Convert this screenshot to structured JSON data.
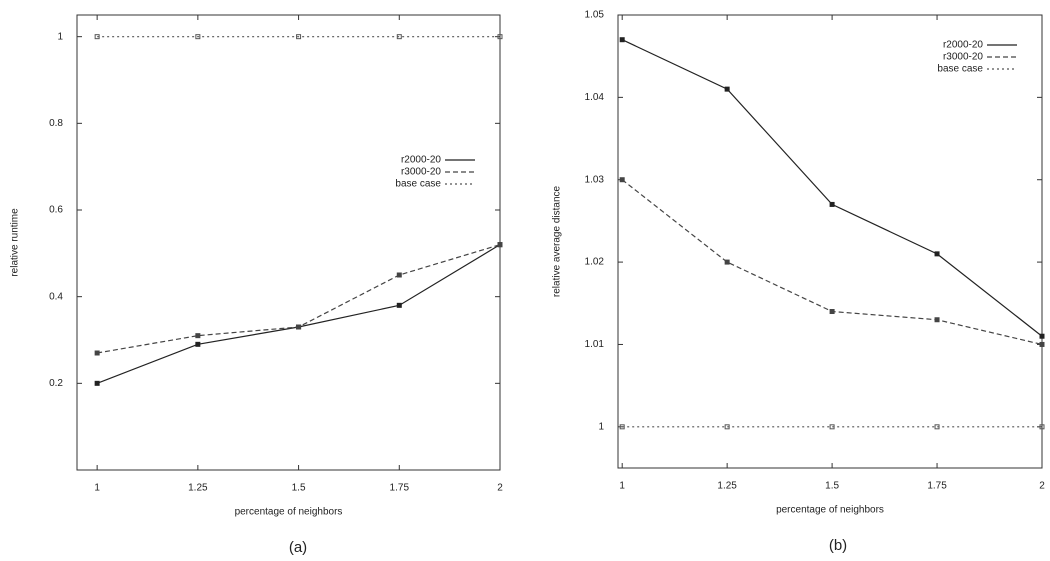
{
  "chart_data": [
    {
      "type": "line",
      "caption": "(a)",
      "x_label": "percentage of neighbors",
      "y_label": "relative runtime",
      "x": [
        1,
        1.25,
        1.5,
        1.75,
        2
      ],
      "xlim": [
        0.95,
        2
      ],
      "xticks": [
        1,
        1.25,
        1.5,
        1.75,
        2
      ],
      "ylim": [
        0,
        1.05
      ],
      "yticks": [
        0.2,
        0.4,
        0.6,
        0.8,
        1
      ],
      "legend": "upper right",
      "series": [
        {
          "name": "r2000-20",
          "color": "#222222",
          "linestyle": "solid",
          "values": [
            0.2,
            0.29,
            0.33,
            0.38,
            0.52
          ]
        },
        {
          "name": "r3000-20",
          "color": "#444444",
          "linestyle": "dashed",
          "values": [
            0.27,
            0.31,
            0.33,
            0.45,
            0.52
          ]
        },
        {
          "name": "base case",
          "color": "#555555",
          "linestyle": "dotted",
          "values": [
            1,
            1,
            1,
            1,
            1
          ]
        }
      ]
    },
    {
      "type": "line",
      "caption": "(b)",
      "x_label": "percentage of neighbors",
      "y_label": "relative average distance",
      "x": [
        1,
        1.25,
        1.5,
        1.75,
        2
      ],
      "xlim": [
        0.99,
        2
      ],
      "xticks": [
        1,
        1.25,
        1.5,
        1.75,
        2
      ],
      "ylim": [
        0.995,
        1.05
      ],
      "yticks": [
        1,
        1.01,
        1.02,
        1.03,
        1.04,
        1.05
      ],
      "legend": "upper right",
      "series": [
        {
          "name": "r2000-20",
          "color": "#222222",
          "linestyle": "solid",
          "values": [
            1.047,
            1.041,
            1.027,
            1.021,
            1.011
          ]
        },
        {
          "name": "r3000-20",
          "color": "#444444",
          "linestyle": "dashed",
          "values": [
            1.03,
            1.02,
            1.014,
            1.013,
            1.01
          ]
        },
        {
          "name": "base case",
          "color": "#555555",
          "linestyle": "dotted",
          "values": [
            1,
            1,
            1,
            1,
            1
          ]
        }
      ]
    }
  ]
}
